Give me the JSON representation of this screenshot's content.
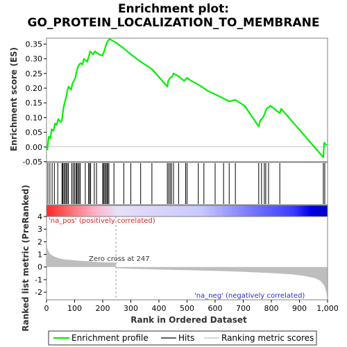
{
  "title_line1": "Enrichment plot:",
  "title_line2": "GO_PROTEIN_LOCALIZATION_TO_MEMBRANE",
  "colors": {
    "es_line": "#00ee00",
    "hits": "#000000",
    "metric_fill": "#bebebe",
    "pos_red": "#ff0000",
    "neg_blue": "#0000ff",
    "pos_label": "#e02020",
    "neg_label": "#2a2ad8"
  },
  "legend": {
    "es": "Enrichment profile",
    "hits": "Hits",
    "metric": "Ranking metric scores"
  },
  "chart_data": [
    {
      "type": "line",
      "name": "enrichment-score",
      "ylabel": "Enrichment score (ES)",
      "ylim": [
        -0.05,
        0.37
      ],
      "xlim": [
        0,
        1000
      ],
      "yticks": [
        "0.35",
        "0.30",
        "0.25",
        "0.20",
        "0.15",
        "0.10",
        "0.05",
        "0.00",
        "-0.05"
      ],
      "grid": false,
      "points": [
        [
          0,
          0.0
        ],
        [
          3,
          -0.008
        ],
        [
          8,
          0.035
        ],
        [
          14,
          0.03
        ],
        [
          18,
          0.06
        ],
        [
          25,
          0.055
        ],
        [
          30,
          0.08
        ],
        [
          36,
          0.075
        ],
        [
          42,
          0.095
        ],
        [
          50,
          0.085
        ],
        [
          55,
          0.09
        ],
        [
          58,
          0.115
        ],
        [
          62,
          0.14
        ],
        [
          66,
          0.155
        ],
        [
          70,
          0.17
        ],
        [
          74,
          0.19
        ],
        [
          78,
          0.205
        ],
        [
          88,
          0.195
        ],
        [
          92,
          0.215
        ],
        [
          97,
          0.225
        ],
        [
          103,
          0.235
        ],
        [
          107,
          0.255
        ],
        [
          111,
          0.27
        ],
        [
          116,
          0.28
        ],
        [
          122,
          0.285
        ],
        [
          128,
          0.28
        ],
        [
          133,
          0.3
        ],
        [
          145,
          0.29
        ],
        [
          151,
          0.31
        ],
        [
          155,
          0.325
        ],
        [
          166,
          0.315
        ],
        [
          172,
          0.325
        ],
        [
          180,
          0.32
        ],
        [
          188,
          0.315
        ],
        [
          198,
          0.31
        ],
        [
          203,
          0.32
        ],
        [
          207,
          0.33
        ],
        [
          211,
          0.345
        ],
        [
          215,
          0.355
        ],
        [
          219,
          0.362
        ],
        [
          225,
          0.367
        ],
        [
          247,
          0.355
        ],
        [
          275,
          0.335
        ],
        [
          300,
          0.315
        ],
        [
          335,
          0.29
        ],
        [
          375,
          0.265
        ],
        [
          430,
          0.205
        ],
        [
          433,
          0.225
        ],
        [
          440,
          0.235
        ],
        [
          447,
          0.24
        ],
        [
          452,
          0.25
        ],
        [
          470,
          0.24
        ],
        [
          490,
          0.225
        ],
        [
          500,
          0.235
        ],
        [
          515,
          0.225
        ],
        [
          535,
          0.215
        ],
        [
          552,
          0.205
        ],
        [
          575,
          0.19
        ],
        [
          598,
          0.18
        ],
        [
          630,
          0.165
        ],
        [
          650,
          0.155
        ],
        [
          672,
          0.16
        ],
        [
          705,
          0.14
        ],
        [
          755,
          0.07
        ],
        [
          760,
          0.09
        ],
        [
          770,
          0.1
        ],
        [
          777,
          0.115
        ],
        [
          783,
          0.13
        ],
        [
          797,
          0.14
        ],
        [
          830,
          0.115
        ],
        [
          835,
          0.13
        ],
        [
          985,
          -0.035
        ],
        [
          988,
          0.015
        ],
        [
          997,
          0.005
        ]
      ]
    },
    {
      "type": "scatter",
      "name": "hits",
      "x": [
        5,
        12,
        20,
        28,
        40,
        55,
        58,
        62,
        66,
        70,
        74,
        78,
        90,
        95,
        100,
        105,
        108,
        112,
        116,
        120,
        138,
        150,
        153,
        157,
        170,
        178,
        200,
        203,
        207,
        211,
        215,
        218,
        222,
        240,
        275,
        300,
        335,
        375,
        430,
        435,
        440,
        445,
        452,
        470,
        495,
        500,
        540,
        560,
        600,
        630,
        650,
        672,
        755,
        765,
        775,
        780,
        790,
        830,
        985,
        990
      ]
    },
    {
      "type": "area",
      "name": "ranking-metric",
      "xlabel": "Rank in Ordered Dataset",
      "ylabel": "Ranked list metric (PreRanked)",
      "ylim": [
        -2.6,
        4
      ],
      "xlim": [
        0,
        1000
      ],
      "yticks": [
        "4",
        "3",
        "2",
        "1",
        "0",
        "-1",
        "-2"
      ],
      "xticks": [
        "0",
        "100",
        "200",
        "300",
        "400",
        "500",
        "600",
        "700",
        "800",
        "900",
        "1,000"
      ],
      "grid": false,
      "zero_cross": 247,
      "zero_cross_label": "Zero cross at 247",
      "pos_label": "'na_pos' (positively correlated)",
      "neg_label": "'na_neg' (negatively correlated)",
      "points": [
        [
          0,
          2.2
        ],
        [
          3,
          1.5
        ],
        [
          8,
          1.2
        ],
        [
          15,
          1.0
        ],
        [
          25,
          0.85
        ],
        [
          40,
          0.72
        ],
        [
          60,
          0.62
        ],
        [
          90,
          0.55
        ],
        [
          130,
          0.48
        ],
        [
          180,
          0.4
        ],
        [
          246,
          0.34
        ],
        [
          247,
          -0.1
        ],
        [
          300,
          -0.14
        ],
        [
          400,
          -0.2
        ],
        [
          500,
          -0.25
        ],
        [
          600,
          -0.3
        ],
        [
          700,
          -0.38
        ],
        [
          800,
          -0.48
        ],
        [
          870,
          -0.58
        ],
        [
          920,
          -0.72
        ],
        [
          955,
          -0.88
        ],
        [
          975,
          -1.1
        ],
        [
          988,
          -1.45
        ],
        [
          996,
          -2.0
        ],
        [
          999,
          -2.5
        ]
      ]
    }
  ]
}
